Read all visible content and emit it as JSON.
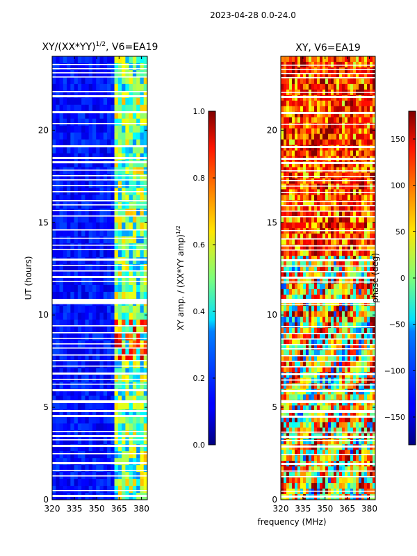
{
  "suptitle": "2023-04-28 0.0-24.0",
  "chart_data": [
    {
      "type": "heatmap",
      "title": "XY/(XX*YY)",
      "title_power": "1/2",
      "title_suffix": ", V6=EA19",
      "ylabel": "UT (hours)",
      "xlabel": "",
      "xlim": [
        320,
        384
      ],
      "ylim": [
        0,
        24
      ],
      "xticks": [
        320,
        335,
        350,
        365,
        380
      ],
      "yticks": [
        0,
        5,
        10,
        15,
        20
      ],
      "colormap": "jet",
      "colorbar": {
        "label": "XY amp. / (XX*YY amp)",
        "label_power": "1/2",
        "range": [
          0.0,
          1.0
        ],
        "ticks": [
          "0.0",
          "0.2",
          "0.4",
          "0.6",
          "0.8",
          "1.0"
        ],
        "tick_values": [
          0.0,
          0.2,
          0.4,
          0.6,
          0.8,
          1.0
        ]
      }
    },
    {
      "type": "heatmap",
      "title": "XY, V6=EA19",
      "xlabel": "frequency (MHz)",
      "ylabel": "",
      "xlim": [
        320,
        384
      ],
      "ylim": [
        0,
        24
      ],
      "xticks": [
        320,
        335,
        350,
        365,
        380
      ],
      "yticks": [
        0,
        5,
        10,
        15,
        20
      ],
      "colormap": "jet",
      "colorbar": {
        "label": "phase (deg)",
        "range": [
          -180,
          180
        ],
        "ticks": [
          "−150",
          "−100",
          "−50",
          "0",
          "50",
          "100",
          "150"
        ],
        "tick_values": [
          -150,
          -100,
          -50,
          0,
          50,
          100,
          150
        ]
      }
    }
  ]
}
